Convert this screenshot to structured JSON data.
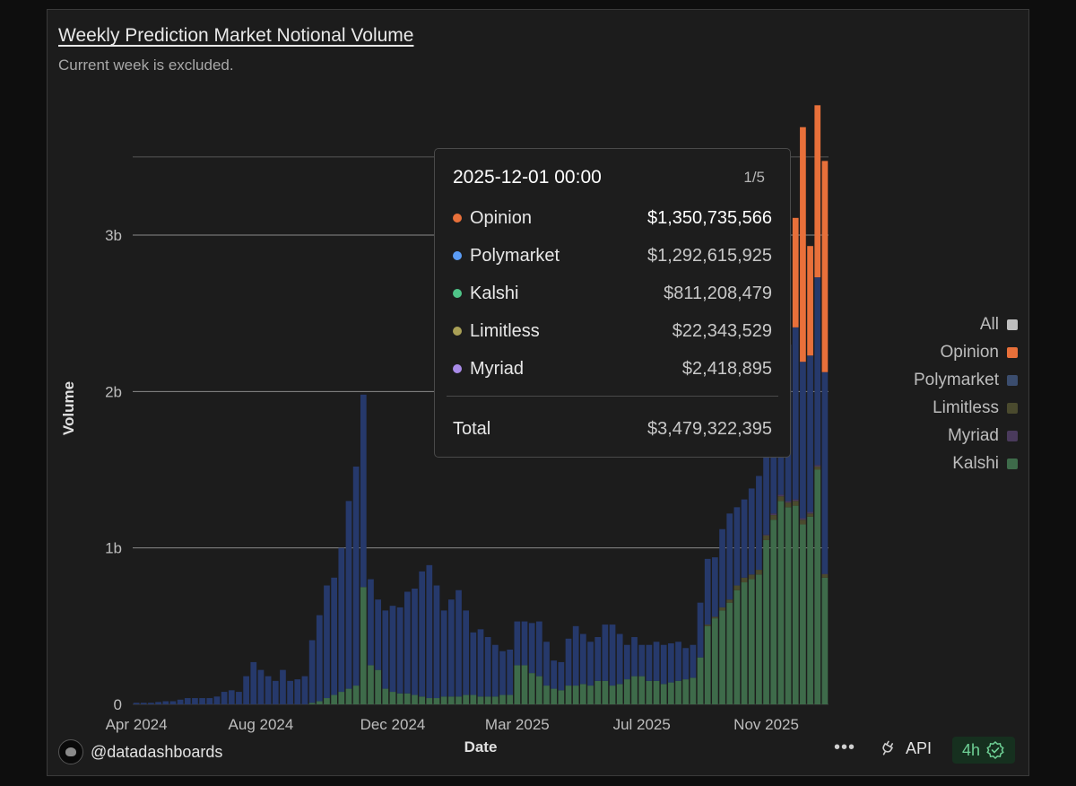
{
  "title": "Weekly Prediction Market Notional Volume",
  "subtitle": "Current week is excluded.",
  "legend": [
    {
      "label": "All",
      "color": "#bfbfbf"
    },
    {
      "label": "Opinion",
      "color": "#e8703a"
    },
    {
      "label": "Polymarket",
      "color": "#3b4d6e"
    },
    {
      "label": "Limitless",
      "color": "#4a4a2e"
    },
    {
      "label": "Myriad",
      "color": "#4a3a5c"
    },
    {
      "label": "Kalshi",
      "color": "#3e6b4a"
    }
  ],
  "tooltip": {
    "date": "2025-12-01 00:00",
    "page": "1/5",
    "rows": [
      {
        "label": "Opinion",
        "value": "$1,350,735,566",
        "color": "#e8703a"
      },
      {
        "label": "Polymarket",
        "value": "$1,292,615,925",
        "color": "#5b9cf5"
      },
      {
        "label": "Kalshi",
        "value": "$811,208,479",
        "color": "#4fc488"
      },
      {
        "label": "Limitless",
        "value": "$22,343,529",
        "color": "#a9a056"
      },
      {
        "label": "Myriad",
        "value": "$2,418,895",
        "color": "#a98be8"
      }
    ],
    "total_label": "Total",
    "total_value": "$3,479,322,395"
  },
  "footer": {
    "user": "@datadashboards",
    "more": "•••",
    "api": "API",
    "refresh": "4h"
  },
  "chart_data": {
    "type": "bar",
    "stacked": true,
    "xlabel": "Date",
    "ylabel": "Volume",
    "ylim": [
      0,
      3.8
    ],
    "y_ticks": [
      0,
      1,
      2,
      3
    ],
    "y_tick_labels": [
      "0",
      "1b",
      "2b",
      "3b"
    ],
    "x_tick_labels": [
      "Apr 2024",
      "Aug 2024",
      "Dec 2024",
      "Mar 2025",
      "Jul 2025",
      "Nov 2025"
    ],
    "x_tick_index": [
      0,
      17,
      35,
      52,
      69,
      86
    ],
    "grid": true,
    "unit": "billions USD",
    "series": [
      {
        "name": "Kalshi",
        "color": "#3e6b4a",
        "values": [
          0.0,
          0.0,
          0.0,
          0.0,
          0.0,
          0.0,
          0.0,
          0.0,
          0.0,
          0.0,
          0.0,
          0.0,
          0.0,
          0.0,
          0.0,
          0.0,
          0.0,
          0.0,
          0.0,
          0.0,
          0.0,
          0.0,
          0.0,
          0.0,
          0.01,
          0.02,
          0.04,
          0.06,
          0.08,
          0.1,
          0.12,
          0.75,
          0.25,
          0.22,
          0.1,
          0.08,
          0.07,
          0.07,
          0.06,
          0.05,
          0.04,
          0.04,
          0.05,
          0.05,
          0.05,
          0.06,
          0.06,
          0.05,
          0.05,
          0.05,
          0.06,
          0.06,
          0.25,
          0.25,
          0.2,
          0.18,
          0.12,
          0.1,
          0.09,
          0.12,
          0.12,
          0.13,
          0.12,
          0.15,
          0.15,
          0.12,
          0.13,
          0.16,
          0.18,
          0.18,
          0.15,
          0.15,
          0.13,
          0.14,
          0.15,
          0.16,
          0.17,
          0.3,
          0.5,
          0.55,
          0.6,
          0.65,
          0.73,
          0.78,
          0.8,
          0.83,
          1.05,
          1.18,
          1.3,
          1.26,
          1.27,
          1.15,
          1.2,
          1.5,
          0.81
        ]
      },
      {
        "name": "Limitless",
        "color": "#4a4a2e",
        "values": [
          0,
          0,
          0,
          0,
          0,
          0,
          0,
          0,
          0,
          0,
          0,
          0,
          0,
          0,
          0,
          0,
          0,
          0,
          0,
          0,
          0,
          0,
          0,
          0,
          0,
          0,
          0,
          0,
          0,
          0,
          0,
          0,
          0,
          0,
          0,
          0,
          0,
          0,
          0,
          0,
          0,
          0,
          0,
          0,
          0,
          0,
          0,
          0,
          0,
          0,
          0,
          0,
          0,
          0,
          0,
          0,
          0,
          0,
          0,
          0,
          0,
          0,
          0,
          0,
          0,
          0,
          0,
          0,
          0,
          0,
          0,
          0,
          0,
          0,
          0,
          0,
          0,
          0,
          0.01,
          0.01,
          0.02,
          0.02,
          0.03,
          0.03,
          0.03,
          0.03,
          0.03,
          0.03,
          0.03,
          0.03,
          0.03,
          0.03,
          0.02,
          0.02,
          0.022
        ]
      },
      {
        "name": "Myriad",
        "color": "#4a3a5c",
        "values": [
          0,
          0,
          0,
          0,
          0,
          0,
          0,
          0,
          0,
          0,
          0,
          0,
          0,
          0,
          0,
          0,
          0,
          0,
          0,
          0,
          0,
          0,
          0,
          0,
          0,
          0,
          0,
          0,
          0,
          0,
          0,
          0,
          0,
          0,
          0,
          0,
          0,
          0,
          0,
          0,
          0,
          0,
          0,
          0,
          0,
          0,
          0,
          0,
          0,
          0,
          0,
          0,
          0,
          0,
          0,
          0,
          0,
          0,
          0,
          0,
          0,
          0,
          0,
          0,
          0,
          0,
          0,
          0,
          0,
          0,
          0,
          0,
          0,
          0,
          0,
          0,
          0,
          0,
          0,
          0,
          0,
          0,
          0,
          0,
          0,
          0,
          0.005,
          0.01,
          0.01,
          0.01,
          0.01,
          0.01,
          0.01,
          0.01,
          0.002
        ]
      },
      {
        "name": "Polymarket",
        "color": "#26396b",
        "values": [
          0.01,
          0.01,
          0.01,
          0.015,
          0.02,
          0.02,
          0.03,
          0.04,
          0.04,
          0.04,
          0.04,
          0.05,
          0.08,
          0.09,
          0.08,
          0.18,
          0.27,
          0.22,
          0.18,
          0.15,
          0.22,
          0.15,
          0.16,
          0.18,
          0.4,
          0.55,
          0.72,
          0.75,
          0.92,
          1.2,
          1.4,
          1.23,
          0.55,
          0.45,
          0.5,
          0.55,
          0.55,
          0.65,
          0.68,
          0.8,
          0.85,
          0.72,
          0.55,
          0.62,
          0.68,
          0.54,
          0.4,
          0.43,
          0.38,
          0.33,
          0.28,
          0.29,
          0.28,
          0.28,
          0.32,
          0.35,
          0.28,
          0.18,
          0.18,
          0.3,
          0.38,
          0.32,
          0.28,
          0.28,
          0.36,
          0.39,
          0.32,
          0.22,
          0.25,
          0.2,
          0.23,
          0.25,
          0.25,
          0.25,
          0.25,
          0.2,
          0.21,
          0.35,
          0.42,
          0.38,
          0.5,
          0.55,
          0.5,
          0.5,
          0.55,
          0.6,
          0.65,
          0.9,
          0.85,
          1.0,
          1.1,
          1.0,
          1.0,
          1.2,
          1.29
        ]
      },
      {
        "name": "Opinion",
        "color": "#e8703a",
        "values": [
          0,
          0,
          0,
          0,
          0,
          0,
          0,
          0,
          0,
          0,
          0,
          0,
          0,
          0,
          0,
          0,
          0,
          0,
          0,
          0,
          0,
          0,
          0,
          0,
          0,
          0,
          0,
          0,
          0,
          0,
          0,
          0,
          0,
          0,
          0,
          0,
          0,
          0,
          0,
          0,
          0,
          0,
          0,
          0,
          0,
          0,
          0,
          0,
          0,
          0,
          0,
          0,
          0,
          0,
          0,
          0,
          0,
          0,
          0,
          0,
          0,
          0,
          0,
          0,
          0,
          0,
          0,
          0,
          0,
          0,
          0,
          0,
          0,
          0,
          0,
          0,
          0,
          0,
          0,
          0,
          0,
          0,
          0,
          0,
          0,
          0,
          0,
          0,
          0,
          0,
          0.7,
          1.5,
          0.7,
          1.1,
          1.35
        ]
      }
    ]
  }
}
